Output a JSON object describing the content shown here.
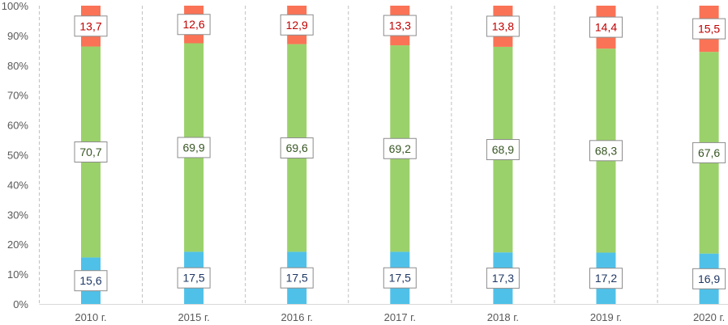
{
  "chart_data": {
    "type": "bar",
    "stacked": "percent",
    "categories": [
      "2010 г.",
      "2015 г.",
      "2016 г.",
      "2017 г.",
      "2018 г.",
      "2019 г.",
      "2020 г."
    ],
    "series": [
      {
        "values": [
          15.6,
          17.5,
          17.5,
          17.5,
          17.3,
          17.2,
          16.9
        ],
        "labels": [
          "15,6",
          "17,5",
          "17,5",
          "17,5",
          "17,3",
          "17,2",
          "16,9"
        ],
        "color": "#4fc1e9",
        "label_color": "#1f3864"
      },
      {
        "values": [
          70.7,
          69.9,
          69.6,
          69.2,
          68.9,
          68.3,
          67.6
        ],
        "labels": [
          "70,7",
          "69,9",
          "69,6",
          "69,2",
          "68,9",
          "68,3",
          "67,6"
        ],
        "color": "#9bd16a",
        "label_color": "#375623"
      },
      {
        "values": [
          13.7,
          12.6,
          12.9,
          13.3,
          13.8,
          14.4,
          15.5
        ],
        "labels": [
          "13,7",
          "12,6",
          "12,9",
          "13,3",
          "13,8",
          "14,4",
          "15,5"
        ],
        "color": "#fa7356",
        "label_color": "#c00000"
      }
    ],
    "ylim": [
      0,
      100
    ],
    "y_ticks": [
      "0%",
      "10%",
      "20%",
      "30%",
      "40%",
      "50%",
      "60%",
      "70%",
      "80%",
      "90%",
      "100%"
    ],
    "grid": "vertical dashed separators between categories",
    "legend": "none"
  }
}
